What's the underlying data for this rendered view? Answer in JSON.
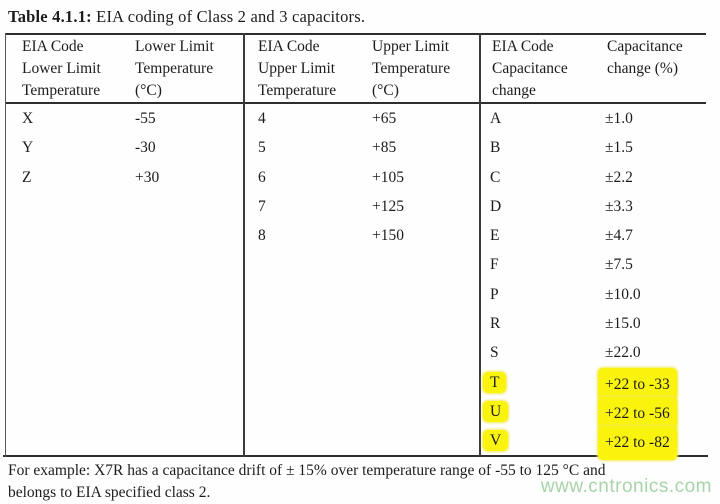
{
  "caption": {
    "label": "Table 4.1.1:",
    "text": " EIA coding of Class 2 and 3 capacitors."
  },
  "table": {
    "headers": [
      "EIA Code\nLower Limit\nTemperature",
      "Lower Limit\nTemperature\n(°C)",
      "EIA Code\nUpper Limit\nTemperature",
      "Upper Limit\nTemperature\n(°C)",
      "EIA Code\nCapacitance\nchange",
      "Capacitance\nchange (%)"
    ],
    "groups": [
      {
        "name": "lower-limit-temperature",
        "rows": [
          {
            "code": "X",
            "value": "-55"
          },
          {
            "code": "Y",
            "value": "-30"
          },
          {
            "code": "Z",
            "value": "+30"
          }
        ]
      },
      {
        "name": "upper-limit-temperature",
        "rows": [
          {
            "code": "4",
            "value": "+65"
          },
          {
            "code": "5",
            "value": "+85"
          },
          {
            "code": "6",
            "value": "+105"
          },
          {
            "code": "7",
            "value": "+125"
          },
          {
            "code": "8",
            "value": "+150"
          }
        ]
      },
      {
        "name": "capacitance-change",
        "rows": [
          {
            "code": "A",
            "value": "±1.0"
          },
          {
            "code": "B",
            "value": "±1.5"
          },
          {
            "code": "C",
            "value": "±2.2"
          },
          {
            "code": "D",
            "value": "±3.3"
          },
          {
            "code": "E",
            "value": "±4.7"
          },
          {
            "code": "F",
            "value": "±7.5"
          },
          {
            "code": "P",
            "value": "±10.0"
          },
          {
            "code": "R",
            "value": "±15.0"
          },
          {
            "code": "S",
            "value": "±22.0"
          },
          {
            "code": "T",
            "value": "+22 to -33",
            "highlight": true
          },
          {
            "code": "U",
            "value": "+22 to -56",
            "highlight": true
          },
          {
            "code": "V",
            "value": "+22 to -82",
            "highlight": true
          }
        ]
      }
    ],
    "highlight_color": "#faf30e"
  },
  "footer": {
    "text": "For example: X7R has a capacitance drift of ± 15% over temperature range of -55 to 125 °C and\nbelongs to EIA specified class 2."
  },
  "watermark": {
    "text": "www.cntronics.com",
    "color": "#a7d4a9"
  }
}
